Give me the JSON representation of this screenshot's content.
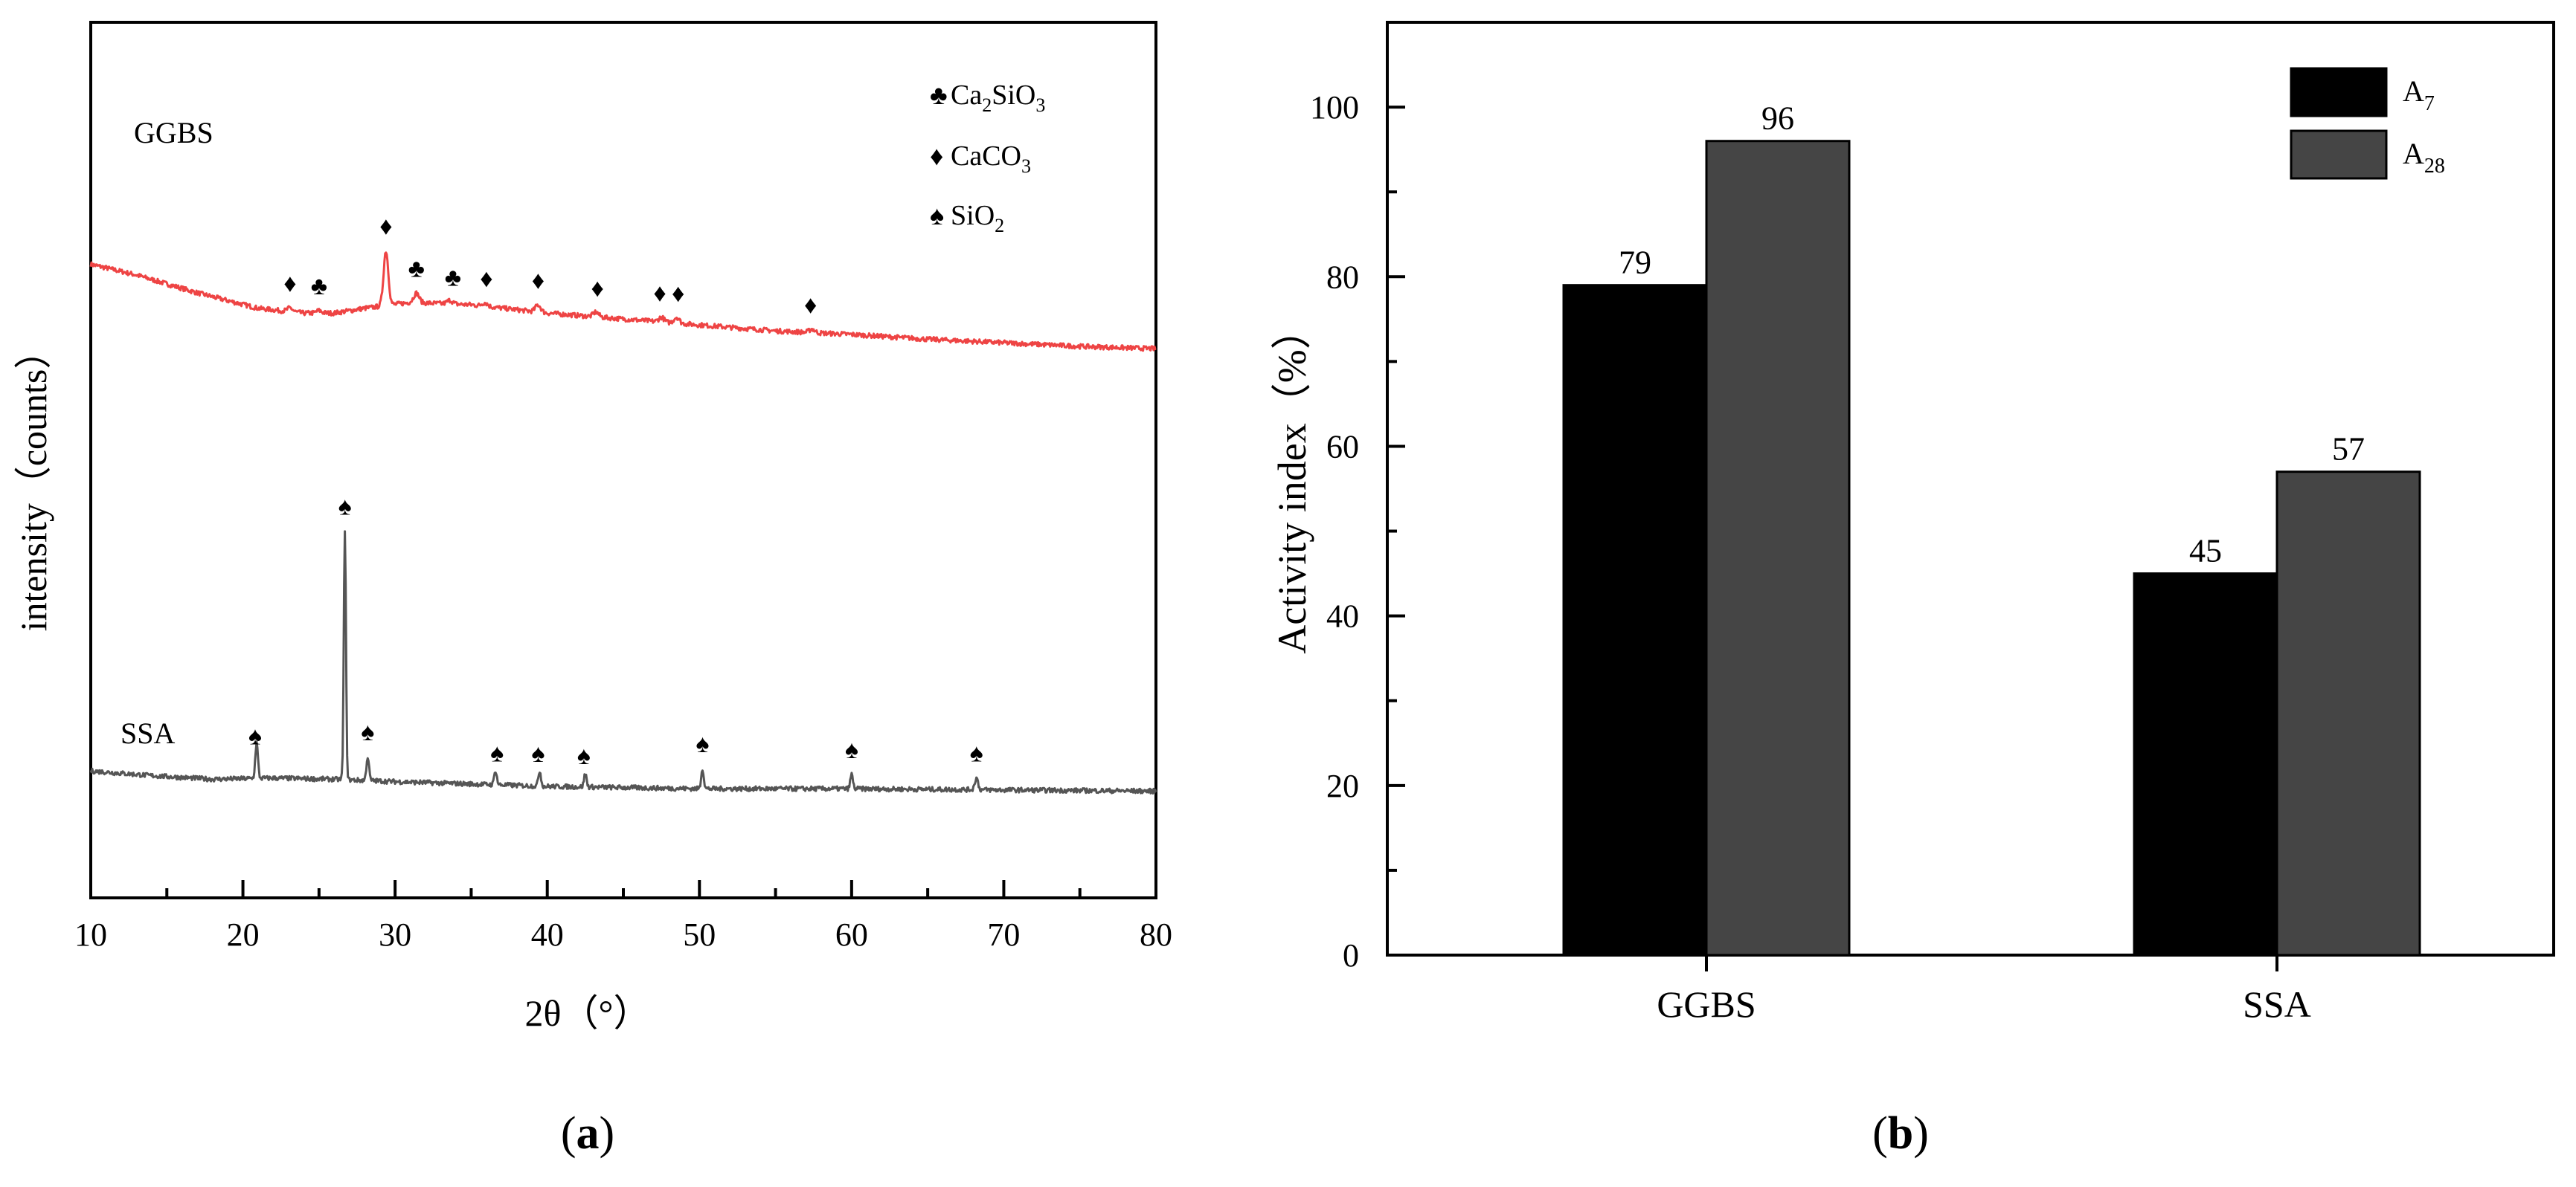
{
  "chart_data": [
    {
      "id": "a",
      "type": "line",
      "panel_label": "a",
      "xlabel": "2θ（°）",
      "ylabel": "intensity（counts）",
      "xlim": [
        10,
        80
      ],
      "x_ticks": [
        10,
        20,
        30,
        40,
        50,
        60,
        70,
        80
      ],
      "y_ticks_labels": "none",
      "series": [
        {
          "name": "GGBS",
          "color": "#ee4444",
          "background": [
            [
              10,
              0.59
            ],
            [
              13,
              0.5
            ],
            [
              17,
              0.35
            ],
            [
              21,
              0.22
            ],
            [
              24,
              0.18
            ],
            [
              26,
              0.18
            ],
            [
              28,
              0.22
            ],
            [
              31,
              0.27
            ],
            [
              35,
              0.25
            ],
            [
              40,
              0.18
            ],
            [
              45,
              0.13
            ],
            [
              50,
              0.08
            ],
            [
              55,
              0.03
            ],
            [
              60,
              0.0
            ],
            [
              65,
              -0.04
            ],
            [
              70,
              -0.07
            ],
            [
              75,
              -0.1
            ],
            [
              80,
              -0.12
            ]
          ],
          "peaks": [
            [
              23.1,
              0.03,
              0.25
            ],
            [
              25.0,
              0.02,
              0.25
            ],
            [
              29.4,
              0.46,
              0.22
            ],
            [
              31.4,
              0.08,
              0.25
            ],
            [
              33.6,
              0.03,
              0.25
            ],
            [
              35.9,
              0.03,
              0.25
            ],
            [
              39.4,
              0.06,
              0.25
            ],
            [
              43.2,
              0.04,
              0.25
            ],
            [
              47.5,
              0.04,
              0.25
            ],
            [
              48.5,
              0.05,
              0.25
            ],
            [
              57.4,
              0.03,
              0.25
            ]
          ],
          "markers": [
            {
              "x": 23.1,
              "symbol": "♦"
            },
            {
              "x": 25.0,
              "symbol": "♣"
            },
            {
              "x": 29.4,
              "symbol": "♦"
            },
            {
              "x": 31.4,
              "symbol": "♣"
            },
            {
              "x": 33.8,
              "symbol": "♣"
            },
            {
              "x": 36.0,
              "symbol": "♦"
            },
            {
              "x": 39.4,
              "symbol": "♦"
            },
            {
              "x": 43.3,
              "symbol": "♦"
            },
            {
              "x": 47.4,
              "symbol": "♦"
            },
            {
              "x": 48.6,
              "symbol": "♦"
            },
            {
              "x": 57.3,
              "symbol": "♦"
            }
          ]
        },
        {
          "name": "SSA",
          "color": "#555555",
          "background": [
            [
              10,
              0.13
            ],
            [
              14,
              0.09
            ],
            [
              18,
              0.06
            ],
            [
              22,
              0.07
            ],
            [
              26,
              0.06
            ],
            [
              30,
              0.04
            ],
            [
              35,
              0.02
            ],
            [
              40,
              0.0
            ],
            [
              50,
              -0.02
            ],
            [
              60,
              -0.02
            ],
            [
              70,
              -0.03
            ],
            [
              80,
              -0.04
            ]
          ],
          "peaks": [
            [
              20.9,
              0.3,
              0.12
            ],
            [
              26.7,
              2.09,
              0.1
            ],
            [
              28.2,
              0.2,
              0.12
            ],
            [
              36.6,
              0.12,
              0.12
            ],
            [
              39.5,
              0.13,
              0.12
            ],
            [
              42.5,
              0.11,
              0.12
            ],
            [
              50.2,
              0.17,
              0.12
            ],
            [
              60.0,
              0.12,
              0.12
            ],
            [
              68.2,
              0.1,
              0.15
            ]
          ],
          "markers": [
            {
              "x": 20.8,
              "symbol": "♠"
            },
            {
              "x": 26.7,
              "symbol": "♠"
            },
            {
              "x": 28.2,
              "symbol": "♠"
            },
            {
              "x": 36.7,
              "symbol": "♠"
            },
            {
              "x": 39.4,
              "symbol": "♠"
            },
            {
              "x": 42.4,
              "symbol": "♠"
            },
            {
              "x": 50.2,
              "symbol": "♠"
            },
            {
              "x": 60.0,
              "symbol": "♠"
            },
            {
              "x": 68.2,
              "symbol": "♠"
            }
          ]
        }
      ],
      "series_labels": [
        "GGBS",
        "SSA"
      ],
      "legend": {
        "position": "top-right",
        "entries": [
          {
            "symbol": "♣",
            "label": "Ca",
            "sub1": "2",
            "mid": "SiO",
            "sub2": "3"
          },
          {
            "symbol": "♦",
            "label": "CaCO",
            "sub1": "3",
            "mid": "",
            "sub2": ""
          },
          {
            "symbol": "♠",
            "label": "SiO",
            "sub1": "2",
            "mid": "",
            "sub2": ""
          }
        ]
      }
    },
    {
      "id": "b",
      "type": "bar",
      "panel_label": "b",
      "categories": [
        "GGBS",
        "SSA"
      ],
      "series": [
        {
          "name": "A",
          "subscript": "7",
          "color": "#000000",
          "values": [
            79,
            45
          ]
        },
        {
          "name": "A",
          "subscript": "28",
          "color": "#454545",
          "values": [
            96,
            57
          ]
        }
      ],
      "ylabel": "Activity index（%）",
      "xlabel": "",
      "ylim": [
        0,
        110
      ],
      "y_ticks": [
        0,
        20,
        40,
        60,
        80,
        100
      ],
      "data_labels": true,
      "legend": {
        "position": "top-right"
      }
    }
  ]
}
